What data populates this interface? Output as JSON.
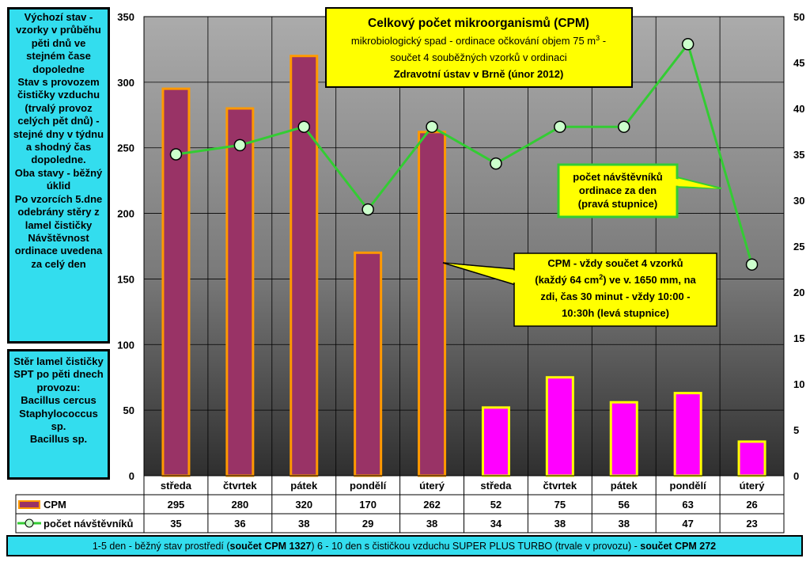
{
  "left_note_top": [
    "Výchozí stav -",
    "vzorky v průběhu",
    "pěti dnů ve",
    "stejném čase",
    "dopoledne",
    "Stav s provozem",
    "čističky vzduchu",
    "(trvalý provoz",
    "celých pět dnů) -",
    "stejné dny v týdnu",
    "a shodný čas",
    "dopoledne.",
    "Oba stavy - běžný",
    "úklid",
    "Po vzorcích 5.dne",
    "odebrány stěry z",
    "lamel čističky",
    "Návštěvnost",
    "ordinace  uvedena",
    "za celý den"
  ],
  "left_note_bottom": [
    "Stěr lamel čističky",
    "SPT po pěti dnech",
    "provozu:",
    "Bacillus cercus",
    "Staphylococcus",
    "sp.",
    "Bacillus sp."
  ],
  "title_box": {
    "line1": "Celkový počet mikroorganismů  (CPM)",
    "line2_pre": "mikrobiologický spad - ordinace očkování objem 75 m",
    "line2_sup": "3",
    "line2_post": " -",
    "line3": "součet 4  souběžných vzorků v ordinaci",
    "line4": "Zdravotní ústav  v Brně (únor 2012)"
  },
  "callout_visitors": [
    "počet návštěvníků",
    "ordinace za den",
    "(pravá stupnice)"
  ],
  "callout_cpm": {
    "line1": "CPM - vždy součet  4 vzorků",
    "line2_pre": "(každý 64 cm",
    "line2_sup": "2",
    "line2_post": ") ve v. 1650 mm,  na",
    "line3": "zdi, čas 30 minut - vždy 10:00 -",
    "line4": "10:30h  (levá stupnice)"
  },
  "footer": {
    "part1": "1-5 den - běžný stav prostředí (",
    "part1_bold": "součet CPM 1327",
    "part2": ")          6 - 10 den s čističkou vzduchu SUPER PLUS TURBO  (trvale v provozu) - ",
    "part2_bold": "součet CPM 272"
  },
  "colors": {
    "bar_before_fill": "#993366",
    "bar_before_border": "#ff9900",
    "bar_after_fill": "#ff00ff",
    "bar_after_border": "#ffff00",
    "line": "#33cc33",
    "marker_fill": "#ccffcc",
    "box_yellow": "#ffff00",
    "box_cyan": "#33ddee"
  },
  "chart_data": {
    "type": "bar",
    "categories": [
      "středa",
      "čtvrtek",
      "pátek",
      "pondělí",
      "úterý",
      "středa",
      "čtvrtek",
      "pátek",
      "pondělí",
      "úterý"
    ],
    "series": [
      {
        "name": "CPM",
        "type": "bar",
        "axis": "left",
        "values": [
          295,
          280,
          320,
          170,
          262,
          52,
          75,
          56,
          63,
          26
        ]
      },
      {
        "name": "počet návštěvníků",
        "type": "line",
        "axis": "right",
        "values": [
          35,
          36,
          38,
          29,
          38,
          34,
          38,
          38,
          47,
          23
        ]
      }
    ],
    "y_left": {
      "min": 0,
      "max": 350,
      "ticks": [
        0,
        50,
        100,
        150,
        200,
        250,
        300,
        350
      ]
    },
    "y_right": {
      "min": 0,
      "max": 50,
      "ticks": [
        0,
        5,
        10,
        15,
        20,
        25,
        30,
        35,
        40,
        45,
        50
      ]
    },
    "grid": true,
    "data_table": true
  }
}
